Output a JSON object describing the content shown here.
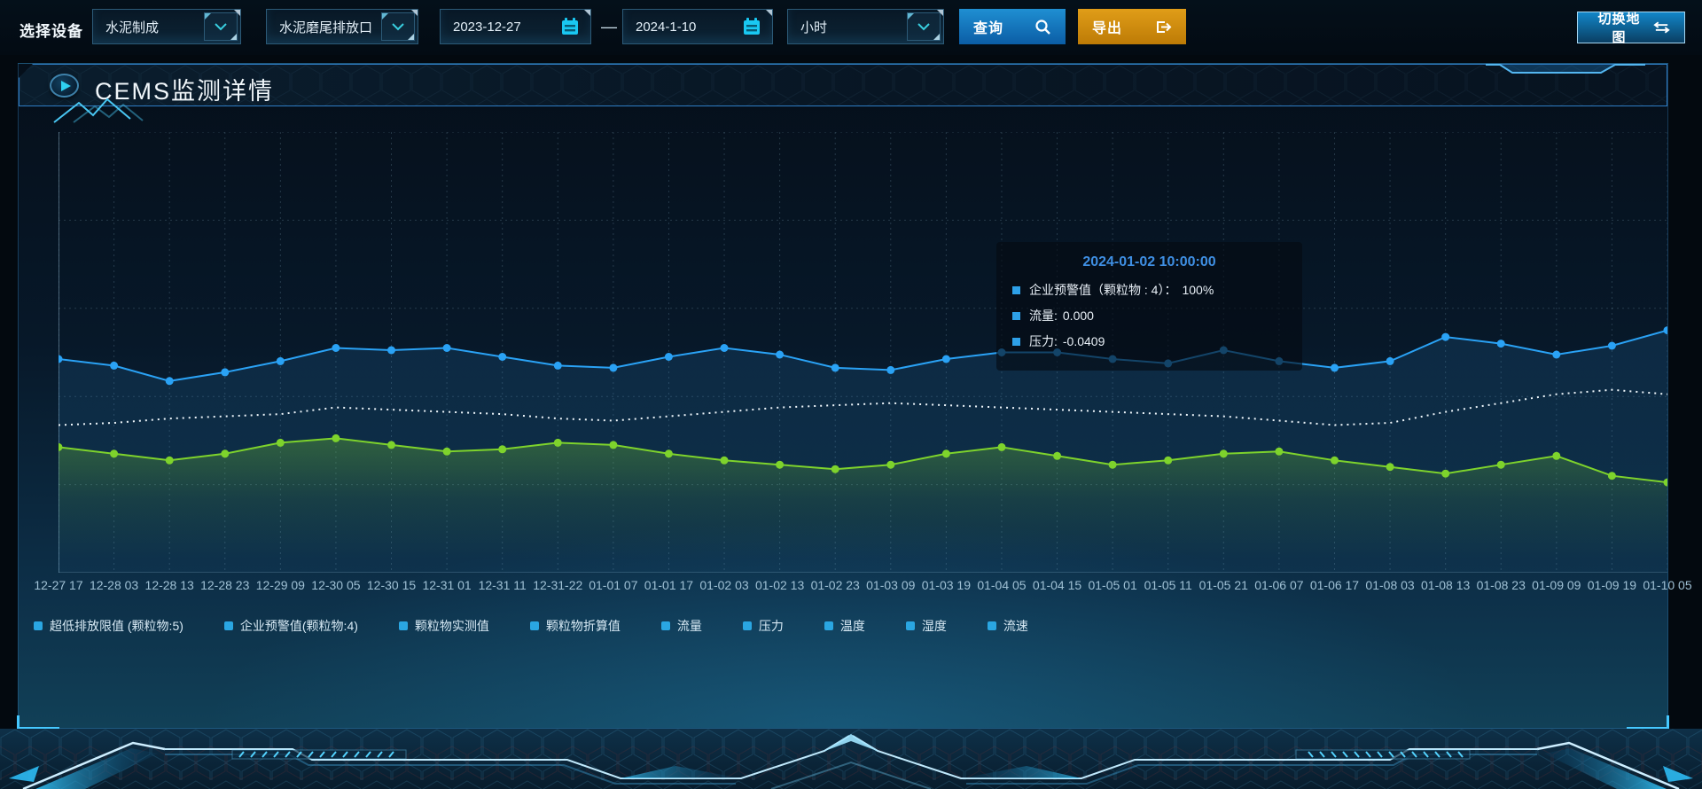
{
  "toolbar": {
    "device_label": "选择设备",
    "selects": [
      {
        "value": "水泥制成"
      },
      {
        "value": "水泥磨尾排放口"
      },
      {
        "value": "小时"
      }
    ],
    "date_start": "2023-12-27",
    "date_separator": "—",
    "date_end": "2024-1-10",
    "query_label": "查询",
    "export_label": "导出",
    "switch_map_label": "切换地图"
  },
  "header": {
    "title": "CEMS监测详情"
  },
  "tooltip": {
    "title": "2024-01-02 10:00:00",
    "rows": [
      {
        "label": "企业预警值（颗粒物 : 4）：",
        "value": "100%"
      },
      {
        "label": "流量:",
        "value": "0.000"
      },
      {
        "label": "压力:",
        "value": "-0.0409"
      }
    ]
  },
  "chart_data": {
    "type": "line",
    "title": "",
    "xlabel": "",
    "ylabel": "",
    "ylim": [
      0,
      100
    ],
    "grid": true,
    "legend_position": "bottom",
    "x": [
      "12-27 17",
      "12-28 03",
      "12-28 13",
      "12-28 23",
      "12-29 09",
      "12-30 05",
      "12-30 15",
      "12-31 01",
      "12-31 11",
      "12-31-22",
      "01-01 07",
      "01-01 17",
      "01-02 03",
      "01-02 13",
      "01-02 23",
      "01-03 09",
      "01-03 19",
      "01-04 05",
      "01-04 15",
      "01-05 01",
      "01-05 11",
      "01-05 21",
      "01-06 07",
      "01-06 17",
      "01-08 03",
      "01-08 13",
      "01-08 23",
      "01-09 09",
      "01-09 19",
      "01-10 05"
    ],
    "legend": [
      "超低排放限值 (颗粒物:5)",
      "企业预警值(颗粒物:4)",
      "颗粒物实测值",
      "颗粒物折算值",
      "流量",
      "压力",
      "温度",
      "湿度",
      "流速"
    ],
    "series": [
      {
        "name": "企业预警值(颗粒物:4)",
        "color": "#2aa2f5",
        "style": "solid",
        "markers": true,
        "area": "blue",
        "values": [
          48.5,
          47,
          43.5,
          45.5,
          48,
          51,
          50.5,
          51,
          49,
          47,
          46.5,
          49,
          51,
          49.5,
          46.5,
          46,
          48.5,
          50,
          50,
          48.5,
          47.5,
          50.5,
          48,
          46.5,
          48,
          53.5,
          52,
          49.5,
          51.5,
          55
        ]
      },
      {
        "name": "超低排放限值 (颗粒物:5)",
        "color": "#eef6fb",
        "style": "dotted",
        "markers": false,
        "area": null,
        "values": [
          33.5,
          34,
          35,
          35.5,
          36,
          37.5,
          37,
          36.5,
          36,
          35,
          34.5,
          35.5,
          36.5,
          37.5,
          38,
          38.5,
          38,
          37.5,
          37,
          36.5,
          36,
          35.5,
          34.5,
          33.5,
          34,
          36.5,
          38.5,
          40.5,
          41.5,
          40.5
        ]
      },
      {
        "name": "颗粒物实测值",
        "color": "#7ed32c",
        "style": "solid",
        "markers": true,
        "area": "green",
        "values": [
          28.5,
          27,
          25.5,
          27,
          29.5,
          30.5,
          29,
          27.5,
          28,
          29.5,
          29,
          27,
          25.5,
          24.5,
          23.5,
          24.5,
          27,
          28.5,
          26.5,
          24.5,
          25.5,
          27,
          27.5,
          25.5,
          24,
          22.5,
          24.5,
          26.5,
          22,
          20.5
        ]
      }
    ]
  }
}
